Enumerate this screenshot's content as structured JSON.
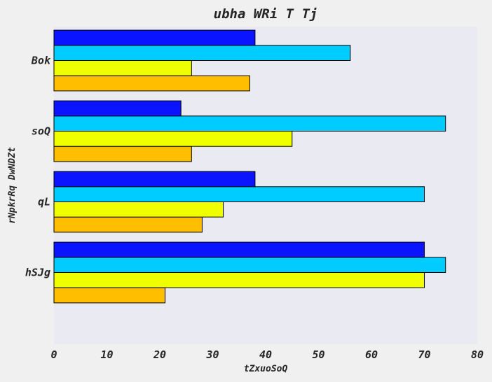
{
  "chart_data": {
    "type": "bar",
    "orientation": "horizontal",
    "title": "ubha WRi T Tj",
    "xlabel": "tZxuoSoQ",
    "ylabel": "rNpkrRq DwNDZt",
    "categories": [
      "hSJg",
      "qL",
      "soQ",
      "Bok"
    ],
    "xlim": [
      0,
      80
    ],
    "xticks": [
      0,
      10,
      20,
      30,
      40,
      50,
      60,
      70,
      80
    ],
    "grid": false,
    "legend": "none",
    "series": [
      {
        "color": "#ffbf00",
        "values": [
          21,
          28,
          26,
          37
        ]
      },
      {
        "color": "#efff00",
        "values": [
          70,
          32,
          45,
          26
        ]
      },
      {
        "color": "#00ccff",
        "values": [
          74,
          70,
          74,
          56
        ]
      },
      {
        "color": "#0a14ff",
        "values": [
          70,
          38,
          24,
          38
        ]
      }
    ],
    "plot_background": "#eaeaf2",
    "page_background": "#f0f0f0"
  }
}
